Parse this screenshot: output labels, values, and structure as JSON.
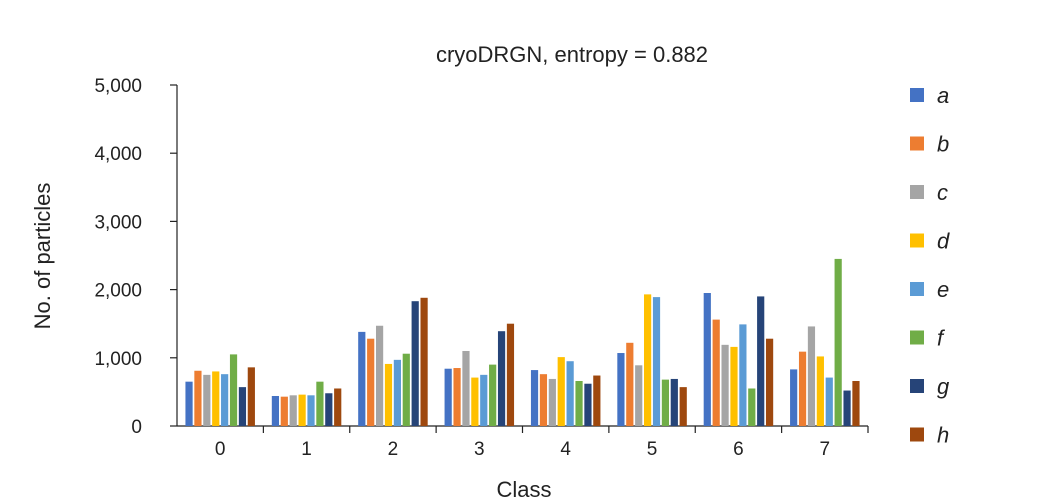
{
  "chart_data": {
    "type": "bar",
    "title": "cryoDRGN, entropy = 0.882",
    "xlabel": "Class",
    "ylabel": "No. of particles",
    "ylim": [
      0,
      5000
    ],
    "yticks": [
      "0",
      "1,000",
      "2,000",
      "3,000",
      "4,000",
      "5,000"
    ],
    "ytick_values": [
      0,
      1000,
      2000,
      3000,
      4000,
      5000
    ],
    "categories": [
      "0",
      "1",
      "2",
      "3",
      "4",
      "5",
      "6",
      "7"
    ],
    "grid": false,
    "legend_position": "right",
    "series": [
      {
        "name": "a",
        "color": "#4472C4",
        "values": [
          650,
          440,
          1380,
          840,
          820,
          1070,
          1950,
          830
        ]
      },
      {
        "name": "b",
        "color": "#ED7D31",
        "values": [
          810,
          430,
          1280,
          850,
          760,
          1220,
          1560,
          1090
        ]
      },
      {
        "name": "c",
        "color": "#A5A5A5",
        "values": [
          750,
          450,
          1470,
          1100,
          690,
          890,
          1190,
          1460
        ]
      },
      {
        "name": "d",
        "color": "#FFC000",
        "values": [
          800,
          460,
          910,
          710,
          1010,
          1930,
          1160,
          1020
        ]
      },
      {
        "name": "e",
        "color": "#5B9BD5",
        "values": [
          760,
          450,
          970,
          750,
          950,
          1890,
          1490,
          710
        ]
      },
      {
        "name": "f",
        "color": "#70AD47",
        "values": [
          1050,
          650,
          1060,
          900,
          660,
          680,
          550,
          2450
        ]
      },
      {
        "name": "g",
        "color": "#264478",
        "values": [
          570,
          480,
          1830,
          1390,
          620,
          690,
          1900,
          520
        ]
      },
      {
        "name": "h",
        "color": "#9E480E",
        "values": [
          860,
          550,
          1880,
          1500,
          740,
          570,
          1280,
          660
        ]
      }
    ]
  }
}
